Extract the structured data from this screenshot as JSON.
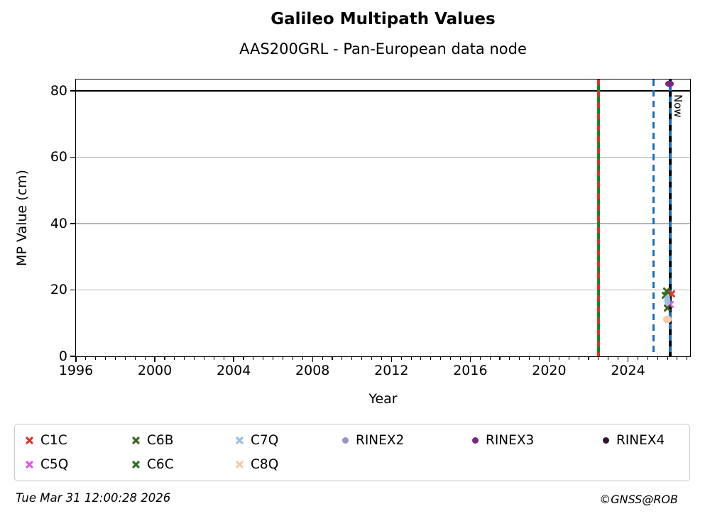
{
  "header": {
    "title": "Galileo Multipath Values",
    "subtitle": "AAS200GRL - Pan-European data node"
  },
  "footer": {
    "timestamp": "Tue Mar 31 12:00:28 2026",
    "credit": "©GNSS@ROB"
  },
  "chart_data": {
    "type": "scatter",
    "title": "Galileo Multipath Values",
    "subtitle": "AAS200GRL - Pan-European data node",
    "xlabel": "Year",
    "ylabel": "MP Value (cm)",
    "xlim": [
      1996,
      2027.15
    ],
    "ylim": [
      0,
      83.4
    ],
    "x_major_ticks": [
      1996,
      2000,
      2004,
      2008,
      2012,
      2016,
      2020,
      2024
    ],
    "x_minor_step": 0.5,
    "y_ticks": [
      0,
      20,
      40,
      60,
      80
    ],
    "grid_color": "#b4b4b4",
    "threshold_line": {
      "y": 80,
      "color": "#000000"
    },
    "vlines": [
      {
        "name": "epoch-line-2022",
        "x": 2022.5,
        "style": "dashed",
        "colors": [
          "#d8342c",
          "#12862e"
        ]
      },
      {
        "name": "epoch-line-2025",
        "x": 2025.3,
        "style": "dashed",
        "colors": [
          "#1b6ec2"
        ]
      },
      {
        "name": "now-line",
        "x": 2026.15,
        "style": "dashed",
        "colors": [
          "#000000",
          "#1b6ec2"
        ],
        "label": "Now"
      }
    ],
    "series": [
      {
        "name": "C1C",
        "legend_marker": "x",
        "marker": "x",
        "color": "#e53227",
        "points": [
          {
            "x": 2026.2,
            "y": 18.9
          }
        ]
      },
      {
        "name": "C5Q",
        "legend_marker": "x",
        "marker": "x",
        "color": "#ee52ee",
        "points": [
          {
            "x": 2026.15,
            "y": 15.7
          }
        ]
      },
      {
        "name": "C6B",
        "legend_marker": "x",
        "marker": "x",
        "color": "#3c651e",
        "points": [
          {
            "x": 2025.95,
            "y": 19.6
          },
          {
            "x": 2026.0,
            "y": 14.5
          }
        ]
      },
      {
        "name": "C6C",
        "legend_marker": "x",
        "marker": "x",
        "color": "#2e6e28",
        "points": [
          {
            "x": 2025.9,
            "y": 18.4
          }
        ]
      },
      {
        "name": "C7Q",
        "legend_marker": "x",
        "marker": "blob",
        "color": "#97c1e7",
        "points": [
          {
            "x": 2026.0,
            "y": 17.0,
            "w": 9,
            "h": 15
          }
        ]
      },
      {
        "name": "C8Q",
        "legend_marker": "x",
        "marker": "blob",
        "color": "#f5cba7",
        "points": [
          {
            "x": 2026.0,
            "y": 11.1,
            "w": 12,
            "h": 11
          }
        ]
      },
      {
        "name": "RINEX2",
        "legend_marker": "circle",
        "marker": "circle",
        "color": "#9a93c9",
        "points": []
      },
      {
        "name": "RINEX3",
        "legend_marker": "circle",
        "marker": "circle",
        "color": "#7b2483",
        "points": [
          {
            "x": 2026.1,
            "y": 82.1,
            "w": 12,
            "h": 9
          }
        ]
      },
      {
        "name": "RINEX4",
        "legend_marker": "circle",
        "marker": "circle",
        "color": "#321233",
        "points": []
      }
    ],
    "legend": {
      "position": "below",
      "columns": [
        [
          "C1C",
          "C5Q"
        ],
        [
          "C6B",
          "C6C"
        ],
        [
          "C7Q",
          "C8Q"
        ],
        [
          "RINEX2"
        ],
        [
          "RINEX3"
        ],
        [
          "RINEX4"
        ]
      ]
    }
  }
}
